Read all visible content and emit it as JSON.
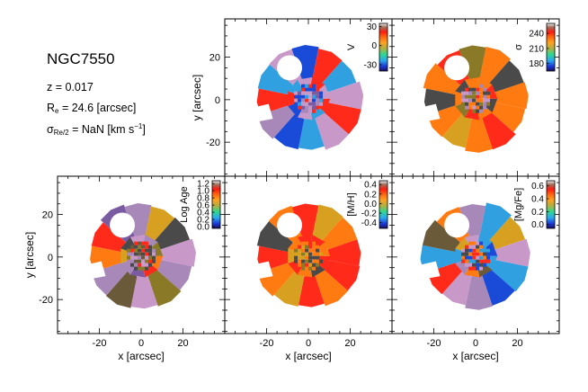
{
  "galaxy": {
    "name": "NGC7550",
    "redshift_label": "z = 0.017",
    "re_symbol": "R",
    "re_subscript": "e",
    "re_value": " = 24.6 [arcsec]",
    "sigma_symbol": "σ",
    "sigma_subscript": "Re/2",
    "sigma_value": " = NaN [km s",
    "sigma_exponent": "−1",
    "sigma_close": "]"
  },
  "colors": {
    "red": "#ff2a1a",
    "orange": "#ff7a10",
    "gold": "#d8a020",
    "pink": "#c898c8",
    "lilac": "#a888b8",
    "violet": "#7a5aa0",
    "dark": "#4a4a4a",
    "black": "#000000",
    "blue": "#1a4ad8",
    "cyan": "#30a0e0",
    "olive": "#8a7a28",
    "brown": "#6a5a3a"
  },
  "chart_data": [
    {
      "type": "heatmap",
      "panel": "velocity",
      "title": "",
      "xlabel": "",
      "ylabel": "y [arcsec]",
      "xlim": [
        -40,
        40
      ],
      "ylim": [
        -36,
        38
      ],
      "xticks": [],
      "yticks": [
        "-20",
        "0",
        "20"
      ],
      "colorbar": {
        "label": "V",
        "range": [
          -40,
          35
        ],
        "ticks": [
          "30",
          "0",
          "-30"
        ],
        "tick_values": [
          30,
          0,
          -30
        ],
        "colormap": "sauron"
      }
    },
    {
      "type": "heatmap",
      "panel": "sigma",
      "title": "",
      "xlabel": "",
      "ylabel": "",
      "xlim": [
        -40,
        40
      ],
      "ylim": [
        -36,
        38
      ],
      "xticks": [],
      "yticks": [],
      "colorbar": {
        "label": "σ",
        "range": [
          165,
          260
        ],
        "ticks": [
          "240",
          "210",
          "180"
        ],
        "tick_values": [
          240,
          210,
          180
        ],
        "colormap": "sauron"
      }
    },
    {
      "type": "heatmap",
      "panel": "log_age",
      "title": "",
      "xlabel": "x [arcsec]",
      "ylabel": "y [arcsec]",
      "xlim": [
        -40,
        40
      ],
      "ylim": [
        -36,
        38
      ],
      "xticks": [
        "-20",
        "0",
        "20"
      ],
      "yticks": [
        "-20",
        "0",
        "20"
      ],
      "colorbar": {
        "label": "Log Age",
        "range": [
          -0.05,
          1.28
        ],
        "ticks": [
          "1.2",
          "1.0",
          "0.8",
          "0.6",
          "0.4",
          "0.2",
          "0.0"
        ],
        "tick_values": [
          1.2,
          1.0,
          0.8,
          0.6,
          0.4,
          0.2,
          0.0
        ],
        "colormap": "sauron"
      }
    },
    {
      "type": "heatmap",
      "panel": "metallicity",
      "title": "",
      "xlabel": "x [arcsec]",
      "ylabel": "",
      "xlim": [
        -40,
        40
      ],
      "ylim": [
        -36,
        38
      ],
      "xticks": [
        "-20",
        "0",
        "20"
      ],
      "yticks": [],
      "colorbar": {
        "label": "[M/H]",
        "range": [
          -0.52,
          0.48
        ],
        "ticks": [
          "0.4",
          "0.2",
          "0.0",
          "-0.2",
          "-0.4"
        ],
        "tick_values": [
          0.4,
          0.2,
          0.0,
          -0.2,
          -0.4
        ],
        "colormap": "sauron"
      }
    },
    {
      "type": "heatmap",
      "panel": "alpha",
      "title": "",
      "xlabel": "x [arcsec]",
      "ylabel": "",
      "xlim": [
        -40,
        40
      ],
      "ylim": [
        -36,
        38
      ],
      "xticks": [
        "-20",
        "0",
        "20"
      ],
      "yticks": [],
      "colorbar": {
        "label": "[Mg/Fe]",
        "range": [
          -0.06,
          0.68
        ],
        "ticks": [
          "0.6",
          "0.4",
          "0.2",
          "0.0"
        ],
        "tick_values": [
          0.6,
          0.4,
          0.2,
          0.0
        ],
        "colormap": "sauron"
      }
    }
  ]
}
